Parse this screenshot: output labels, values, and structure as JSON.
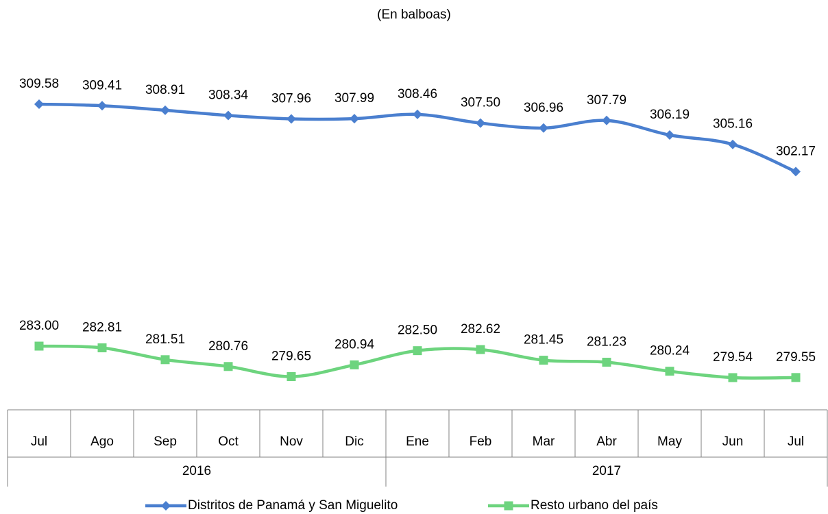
{
  "chart_data": {
    "type": "line",
    "title": "(En balboas)",
    "groups": [
      {
        "label": "2016",
        "categories": [
          "Jul",
          "Ago",
          "Sep",
          "Oct",
          "Nov",
          "Dic"
        ]
      },
      {
        "label": "2017",
        "categories": [
          "Ene",
          "Feb",
          "Mar",
          "Abr",
          "May",
          "Jun",
          "Jul"
        ]
      }
    ],
    "ylim": [
      276,
      315
    ],
    "series": [
      {
        "name": "Distritos de Panamá y San Miguelito",
        "color": "#4a7fcf",
        "marker": "diamond",
        "values": [
          309.58,
          309.41,
          308.91,
          308.34,
          307.96,
          307.99,
          308.46,
          307.5,
          306.96,
          307.79,
          306.19,
          305.16,
          302.17
        ],
        "value_labels": [
          "309.58",
          "309.41",
          "308.91",
          "308.34",
          "307.96",
          "307.99",
          "308.46",
          "307.50",
          "306.96",
          "307.79",
          "306.19",
          "305.16",
          "302.17"
        ]
      },
      {
        "name": "Resto urbano del país",
        "color": "#6dd47e",
        "marker": "square",
        "values": [
          283,
          282.81,
          281.51,
          280.76,
          279.65,
          280.94,
          282.5,
          282.62,
          281.45,
          281.23,
          280.24,
          279.54,
          279.55
        ],
        "value_labels": [
          "283.00",
          "282.81",
          "281.51",
          "280.76",
          "279.65",
          "280.94",
          "282.50",
          "282.62",
          "281.45",
          "281.23",
          "280.24",
          "279.54",
          "279.55"
        ]
      }
    ]
  }
}
